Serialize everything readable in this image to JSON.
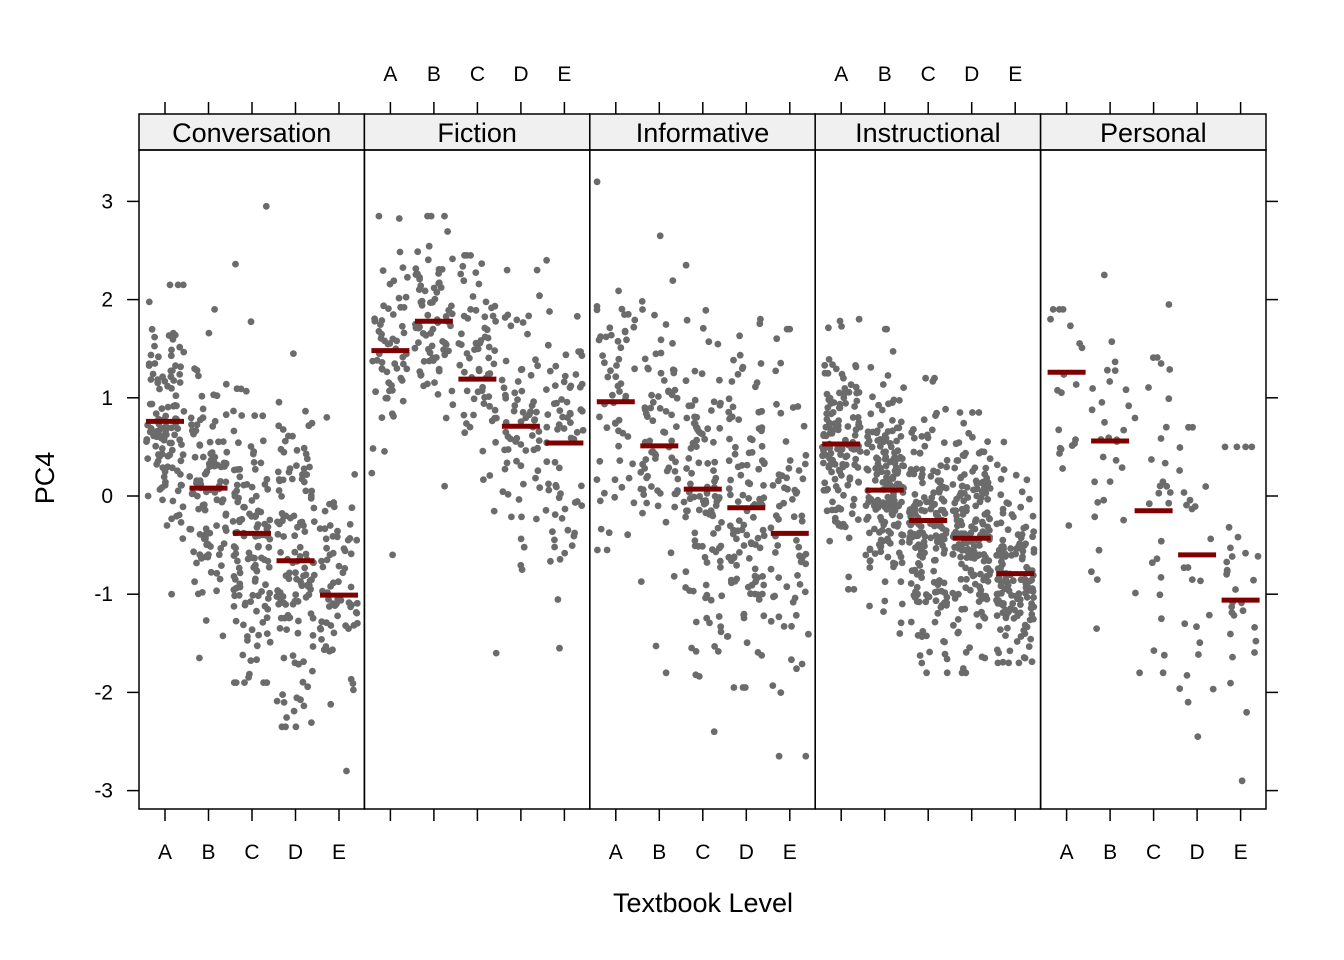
{
  "chart_data": {
    "type": "scatter",
    "title": "",
    "xlabel": "Textbook Level",
    "ylabel": "PC4",
    "ylim": [
      -3.2,
      3.5
    ],
    "y_ticks": [
      -3,
      -2,
      -1,
      0,
      1,
      2,
      3
    ],
    "y_tick_labels": [
      "-3",
      "-2",
      "-1",
      "0",
      "1",
      "2",
      "3"
    ],
    "categories": [
      "A",
      "B",
      "C",
      "D",
      "E"
    ],
    "grid": false,
    "legend": "none",
    "point_color": "#6b6b6b",
    "mean_color": "#7f0000",
    "strip_bg": "#f0f0f0",
    "panels": [
      {
        "name": "Conversation",
        "means": [
          0.76,
          0.08,
          -0.38,
          -0.66,
          -1.01
        ],
        "counts": [
          120,
          110,
          130,
          130,
          70
        ],
        "spread": [
          0.6,
          0.62,
          0.72,
          0.78,
          0.58
        ],
        "ranges": [
          [
            -1.0,
            2.15
          ],
          [
            -1.65,
            1.9
          ],
          [
            -1.9,
            2.95
          ],
          [
            -2.35,
            1.45
          ],
          [
            -2.8,
            0.8
          ]
        ]
      },
      {
        "name": "Fiction",
        "means": [
          1.48,
          1.78,
          1.19,
          0.71,
          0.54
        ],
        "counts": [
          60,
          80,
          70,
          70,
          70
        ],
        "spread": [
          0.55,
          0.48,
          0.58,
          0.68,
          0.75
        ],
        "ranges": [
          [
            -0.6,
            2.85
          ],
          [
            0.1,
            2.85
          ],
          [
            -1.6,
            2.45
          ],
          [
            -0.75,
            2.3
          ],
          [
            -1.55,
            2.4
          ]
        ]
      },
      {
        "name": "Informative",
        "means": [
          0.96,
          0.51,
          0.07,
          -0.12,
          -0.38
        ],
        "counts": [
          60,
          80,
          110,
          110,
          70
        ],
        "spread": [
          0.7,
          0.72,
          0.85,
          0.85,
          0.8
        ],
        "ranges": [
          [
            -0.55,
            3.2
          ],
          [
            -1.8,
            2.65
          ],
          [
            -2.4,
            2.35
          ],
          [
            -1.95,
            1.8
          ],
          [
            -2.65,
            1.7
          ]
        ]
      },
      {
        "name": "Instructional",
        "means": [
          0.53,
          0.06,
          -0.25,
          -0.43,
          -0.79
        ],
        "counts": [
          140,
          180,
          180,
          180,
          150
        ],
        "spread": [
          0.48,
          0.52,
          0.55,
          0.52,
          0.48
        ],
        "ranges": [
          [
            -0.95,
            1.8
          ],
          [
            -1.4,
            1.7
          ],
          [
            -1.8,
            1.2
          ],
          [
            -1.8,
            0.85
          ],
          [
            -1.7,
            0.55
          ]
        ]
      },
      {
        "name": "Personal",
        "means": [
          1.26,
          0.56,
          -0.15,
          -0.6,
          -1.06
        ],
        "counts": [
          20,
          30,
          30,
          25,
          30
        ],
        "spread": [
          0.55,
          0.7,
          0.85,
          0.85,
          0.75
        ],
        "ranges": [
          [
            -0.3,
            1.9
          ],
          [
            -1.35,
            2.25
          ],
          [
            -1.8,
            1.95
          ],
          [
            -2.45,
            0.7
          ],
          [
            -2.9,
            0.5
          ]
        ]
      }
    ]
  }
}
